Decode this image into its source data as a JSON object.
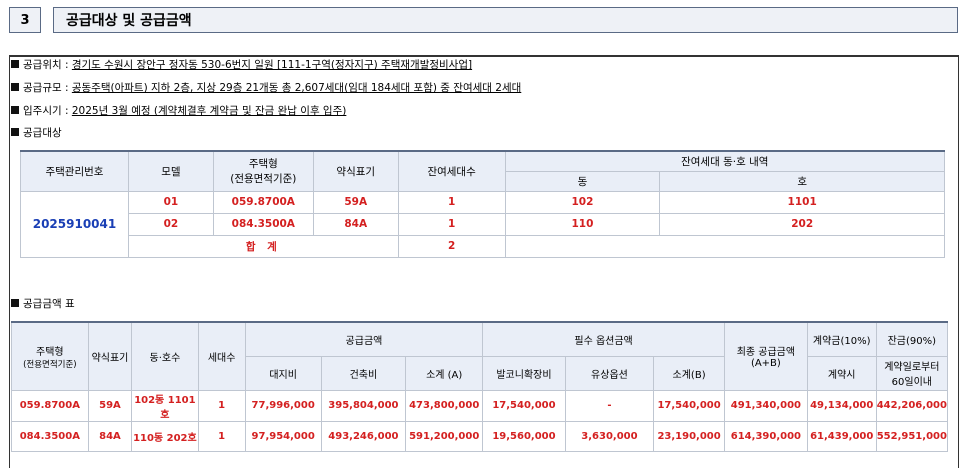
{
  "section": {
    "number": "3",
    "title": "공급대상 및 공급금액"
  },
  "info": {
    "location_label": "공급위치 :",
    "location_value": "경기도 수원시 장안구 정자동 530-6번지 일원 [111-1구역(정자지구) 주택재개발정비사업]",
    "scale_label": "공급규모 :",
    "scale_value": "공동주택(아파트) 지하 2층, 지상 29층 21개동 총 2,607세대(임대 184세대 포함) 중 잔여세대 2세대",
    "movein_label": "입주시기 :",
    "movein_value": "2025년 3월 예정 (계약체결후 계약금 및 잔금 완납 이후 입주)",
    "target_label": "공급대상",
    "price_label": "공급금액 표"
  },
  "target_table": {
    "headers": {
      "mgmt_no": "주택관리번호",
      "model": "모델",
      "type": "주택형",
      "type_sub": "(전용면적기준)",
      "abbr": "약식표기",
      "remaining": "잔여세대수",
      "detail": "잔여세대 동·호 내역",
      "dong": "동",
      "ho": "호"
    },
    "mgmt_no": "2025910041",
    "rows": [
      {
        "model": "01",
        "type": "059.8700A",
        "abbr": "59A",
        "count": "1",
        "dong": "102",
        "ho": "1101"
      },
      {
        "model": "02",
        "type": "084.3500A",
        "abbr": "84A",
        "count": "1",
        "dong": "110",
        "ho": "202"
      }
    ],
    "total_label": "합 계",
    "total_count": "2"
  },
  "price_table": {
    "headers": {
      "type": "주택형",
      "type_sub": "(전용면적기준)",
      "abbr": "약식표기",
      "unit": "동·호수",
      "count": "세대수",
      "supply": "공급금액",
      "land": "대지비",
      "build": "건축비",
      "subtotal_a": "소계 (A)",
      "options": "필수 옵션금액",
      "balcony": "발코니확장비",
      "paid_option": "유상옵션",
      "subtotal_b": "소계(B)",
      "final": "최종 공급금액 (A+B)",
      "deposit": "계약금(10%)",
      "deposit_sub": "계약시",
      "balance": "잔금(90%)",
      "balance_sub": "계약일로부터 60일이내"
    },
    "rows": [
      {
        "type": "059.8700A",
        "abbr": "59A",
        "unit": "102동 1101호",
        "count": "1",
        "land": "77,996,000",
        "build": "395,804,000",
        "subtotal_a": "473,800,000",
        "balcony": "17,540,000",
        "paid_option": "-",
        "subtotal_b": "17,540,000",
        "final": "491,340,000",
        "deposit": "49,134,000",
        "balance": "442,206,000"
      },
      {
        "type": "084.3500A",
        "abbr": "84A",
        "unit": "110동 202호",
        "count": "1",
        "land": "97,954,000",
        "build": "493,246,000",
        "subtotal_a": "591,200,000",
        "balcony": "19,560,000",
        "paid_option": "3,630,000",
        "subtotal_b": "23,190,000",
        "final": "614,390,000",
        "deposit": "61,439,000",
        "balance": "552,951,000"
      }
    ]
  }
}
